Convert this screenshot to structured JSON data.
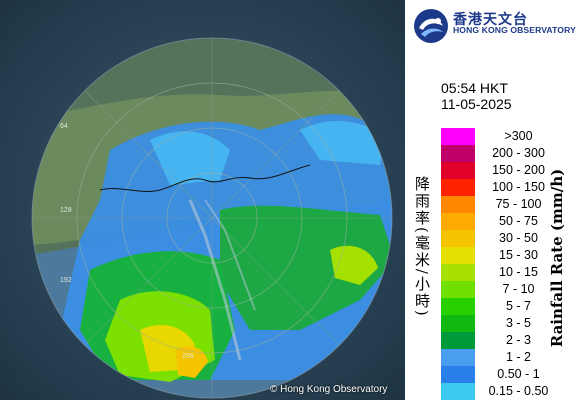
{
  "logo": {
    "name_zh": "香港天文台",
    "name_en": "HONG KONG OBSERVATORY",
    "icon": "observatory-logo-icon"
  },
  "timestamp": {
    "time": "05:54 HKT",
    "date": "11-05-2025"
  },
  "legend": {
    "title_en": "Rainfall Rate (mm/h)",
    "title_zh": "降雨率(毫米/小時)",
    "entries": [
      {
        "label": ">300",
        "color": "#ff00ff"
      },
      {
        "label": "200 - 300",
        "color": "#c0006a"
      },
      {
        "label": "150 - 200",
        "color": "#e0002a"
      },
      {
        "label": "100 - 150",
        "color": "#ff2200"
      },
      {
        "label": "75 - 100",
        "color": "#ff8800"
      },
      {
        "label": "50 - 75",
        "color": "#ffaa00"
      },
      {
        "label": "30 - 50",
        "color": "#f5c400"
      },
      {
        "label": "15 - 30",
        "color": "#e6e000"
      },
      {
        "label": "10 - 15",
        "color": "#a8e000"
      },
      {
        "label": "7 - 10",
        "color": "#70e000"
      },
      {
        "label": "5 - 7",
        "color": "#28d000"
      },
      {
        "label": "3 - 5",
        "color": "#10b810"
      },
      {
        "label": "2 - 3",
        "color": "#009a3a"
      },
      {
        "label": "1 - 2",
        "color": "#4a9ef0"
      },
      {
        "label": "0.50 - 1",
        "color": "#2a80e8"
      },
      {
        "label": "0.15 - 0.50",
        "color": "#3ccaf0"
      }
    ]
  },
  "map": {
    "range_rings": [
      "64",
      "128",
      "192",
      "256"
    ],
    "copyright": "© Hong Kong Observatory"
  }
}
